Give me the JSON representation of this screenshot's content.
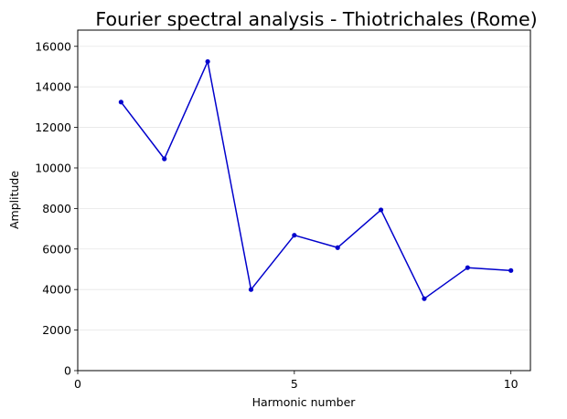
{
  "chart_data": {
    "type": "line",
    "title": "Fourier spectral analysis - Thiotrichales (Rome)",
    "xlabel": "Harmonic number",
    "ylabel": "Amplitude",
    "xlim": [
      0,
      10.45
    ],
    "ylim": [
      0,
      16800
    ],
    "xticks": [
      0,
      5,
      10
    ],
    "yticks": [
      0,
      2000,
      4000,
      6000,
      8000,
      10000,
      12000,
      14000,
      16000
    ],
    "grid": "horizontal",
    "series": [
      {
        "name": "Amplitude",
        "color": "#0000cc",
        "x": [
          1,
          2,
          3,
          4,
          5,
          6,
          7,
          8,
          9,
          10
        ],
        "y": [
          13250,
          10450,
          15250,
          4000,
          6680,
          6070,
          7930,
          3550,
          5080,
          4940
        ]
      }
    ]
  }
}
